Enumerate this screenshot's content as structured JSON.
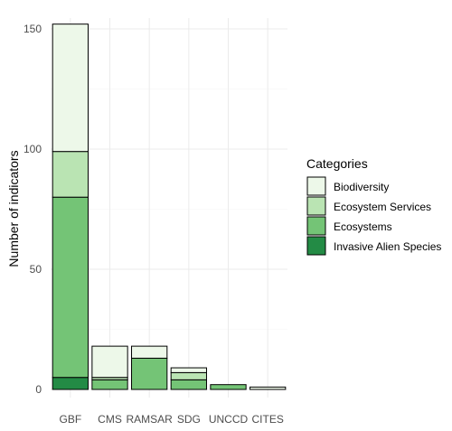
{
  "chart_data": {
    "type": "bar",
    "stacked": true,
    "categories": [
      "GBF",
      "CMS",
      "RAMSAR",
      "SDG",
      "UNCCD",
      "CITES"
    ],
    "series": [
      {
        "name": "Invasive Alien Species",
        "color": "#238b45",
        "values": [
          5,
          0,
          0,
          0,
          0,
          0
        ]
      },
      {
        "name": "Ecosystems",
        "color": "#74c476",
        "values": [
          75,
          4,
          13,
          4,
          2,
          0
        ]
      },
      {
        "name": "Ecosystem Services",
        "color": "#bae4b3",
        "values": [
          19,
          1,
          0,
          3,
          0,
          0
        ]
      },
      {
        "name": "Biodiversity",
        "color": "#edf8e9",
        "values": [
          53,
          13,
          5,
          2,
          0,
          1
        ]
      }
    ],
    "ylabel": "Number of indicators",
    "xlabel": "",
    "ylim": [
      0,
      155
    ],
    "yticks": [
      0,
      50,
      100,
      150
    ],
    "grid": true,
    "legend": {
      "title": "Categories",
      "placement": "right",
      "entries": [
        "Biodiversity",
        "Ecosystem Services",
        "Ecosystems",
        "Invasive Alien Species"
      ]
    }
  }
}
